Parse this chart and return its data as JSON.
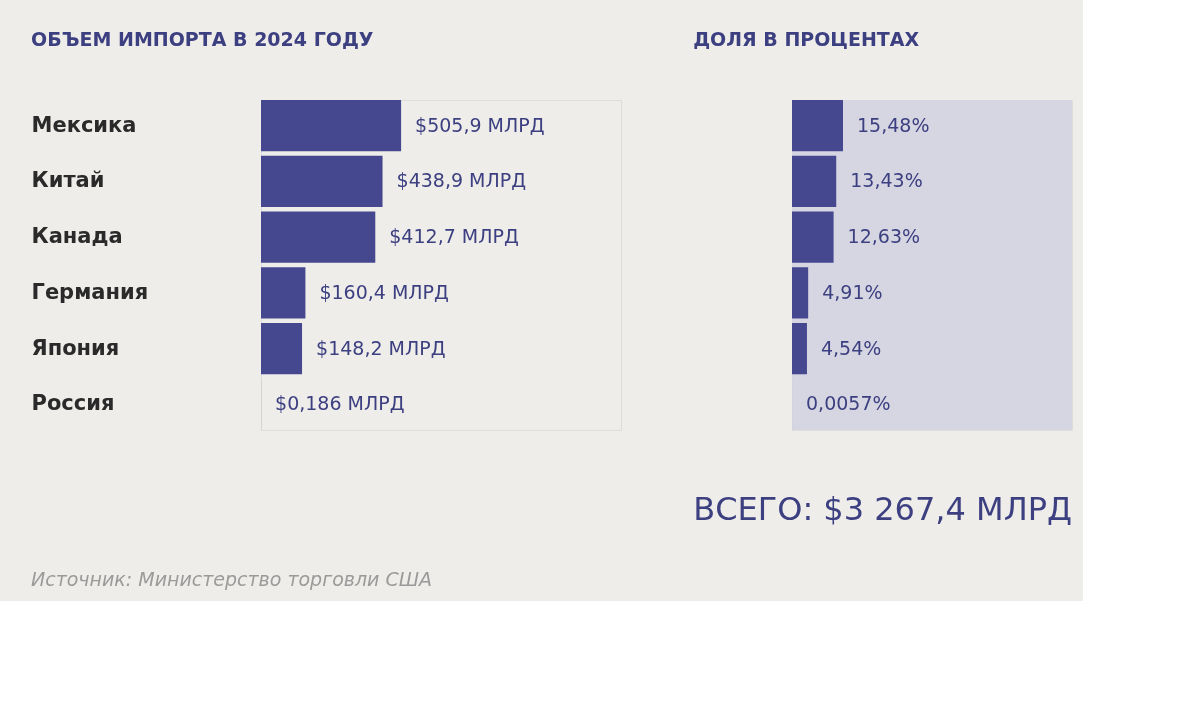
{
  "chart_data": [
    {
      "type": "bar",
      "orientation": "horizontal",
      "title": "ОБЪЕМ ИМПОРТА В 2024 ГОДУ",
      "categories": [
        "Мексика",
        "Китай",
        "Канада",
        "Германия",
        "Япония",
        "Россия"
      ],
      "values": [
        505.9,
        438.9,
        412.7,
        160.4,
        148.2,
        0.186
      ],
      "value_labels": [
        "$505,9 МЛРД",
        "$438,9 МЛРД",
        "$412,7 МЛРД",
        "$160,4 МЛРД",
        "$148,2 МЛРД",
        "$0,186 МЛРД"
      ],
      "color": "#45488f",
      "xlim": [
        0,
        1300
      ],
      "tick_labels": "y",
      "annotations": [
        "Источник: Министерство торговли США"
      ]
    },
    {
      "type": "bar",
      "orientation": "horizontal",
      "title": "ДОЛЯ В ПРОЦЕНТАХ",
      "categories": [
        null,
        null,
        null,
        null,
        null,
        null
      ],
      "values": [
        15.48,
        13.43,
        12.63,
        4.91,
        4.54,
        0.0057
      ],
      "value_labels": [
        "15,48%",
        "13,43%",
        "12,63%",
        "4,91%",
        "4,54%",
        "0,0057%"
      ],
      "color": "#45488f",
      "xlim": [
        0,
        85
      ],
      "tick_labels": false,
      "bands": [
        {
          "axis": "x",
          "from": 0,
          "to": 85,
          "color": "#d6d6e2"
        }
      ],
      "annotations": [
        "ВСЕГО: $3 267,4 МЛРД"
      ]
    }
  ]
}
